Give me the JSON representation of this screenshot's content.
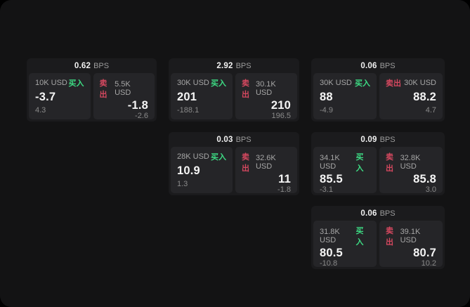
{
  "labels": {
    "bps": "BPS",
    "buy": "买入",
    "sell": "卖出"
  },
  "colors": {
    "window_bg": "#131314",
    "card_bg": "#1b1b1d",
    "panel_bg": "#252528",
    "buy_green": "#3ddc84",
    "sell_red": "#d5485f"
  },
  "cards": [
    {
      "bps": "0.62",
      "buy": {
        "amount": "10K USD",
        "price": "-3.7",
        "delta": "4.3"
      },
      "sell": {
        "amount": "5.5K USD",
        "price": "-1.8",
        "delta": "-2.6"
      }
    },
    {
      "bps": "2.92",
      "buy": {
        "amount": "30K USD",
        "price": "201",
        "delta": "-188.1"
      },
      "sell": {
        "amount": "30.1K USD",
        "price": "210",
        "delta": "196.5"
      }
    },
    {
      "bps": "0.06",
      "buy": {
        "amount": "30K USD",
        "price": "88",
        "delta": "-4.9"
      },
      "sell": {
        "amount": "30K USD",
        "price": "88.2",
        "delta": "4.7"
      }
    },
    {
      "bps": "0.03",
      "buy": {
        "amount": "28K USD",
        "price": "10.9",
        "delta": "1.3"
      },
      "sell": {
        "amount": "32.6K USD",
        "price": "11",
        "delta": "-1.8"
      }
    },
    {
      "bps": "0.09",
      "buy": {
        "amount": "34.1K USD",
        "price": "85.5",
        "delta": "-3.1"
      },
      "sell": {
        "amount": "32.8K USD",
        "price": "85.8",
        "delta": "3.0"
      }
    },
    {
      "bps": "0.06",
      "buy": {
        "amount": "31.8K USD",
        "price": "80.5",
        "delta": "-10.8"
      },
      "sell": {
        "amount": "39.1K USD",
        "price": "80.7",
        "delta": "10.2"
      }
    }
  ]
}
